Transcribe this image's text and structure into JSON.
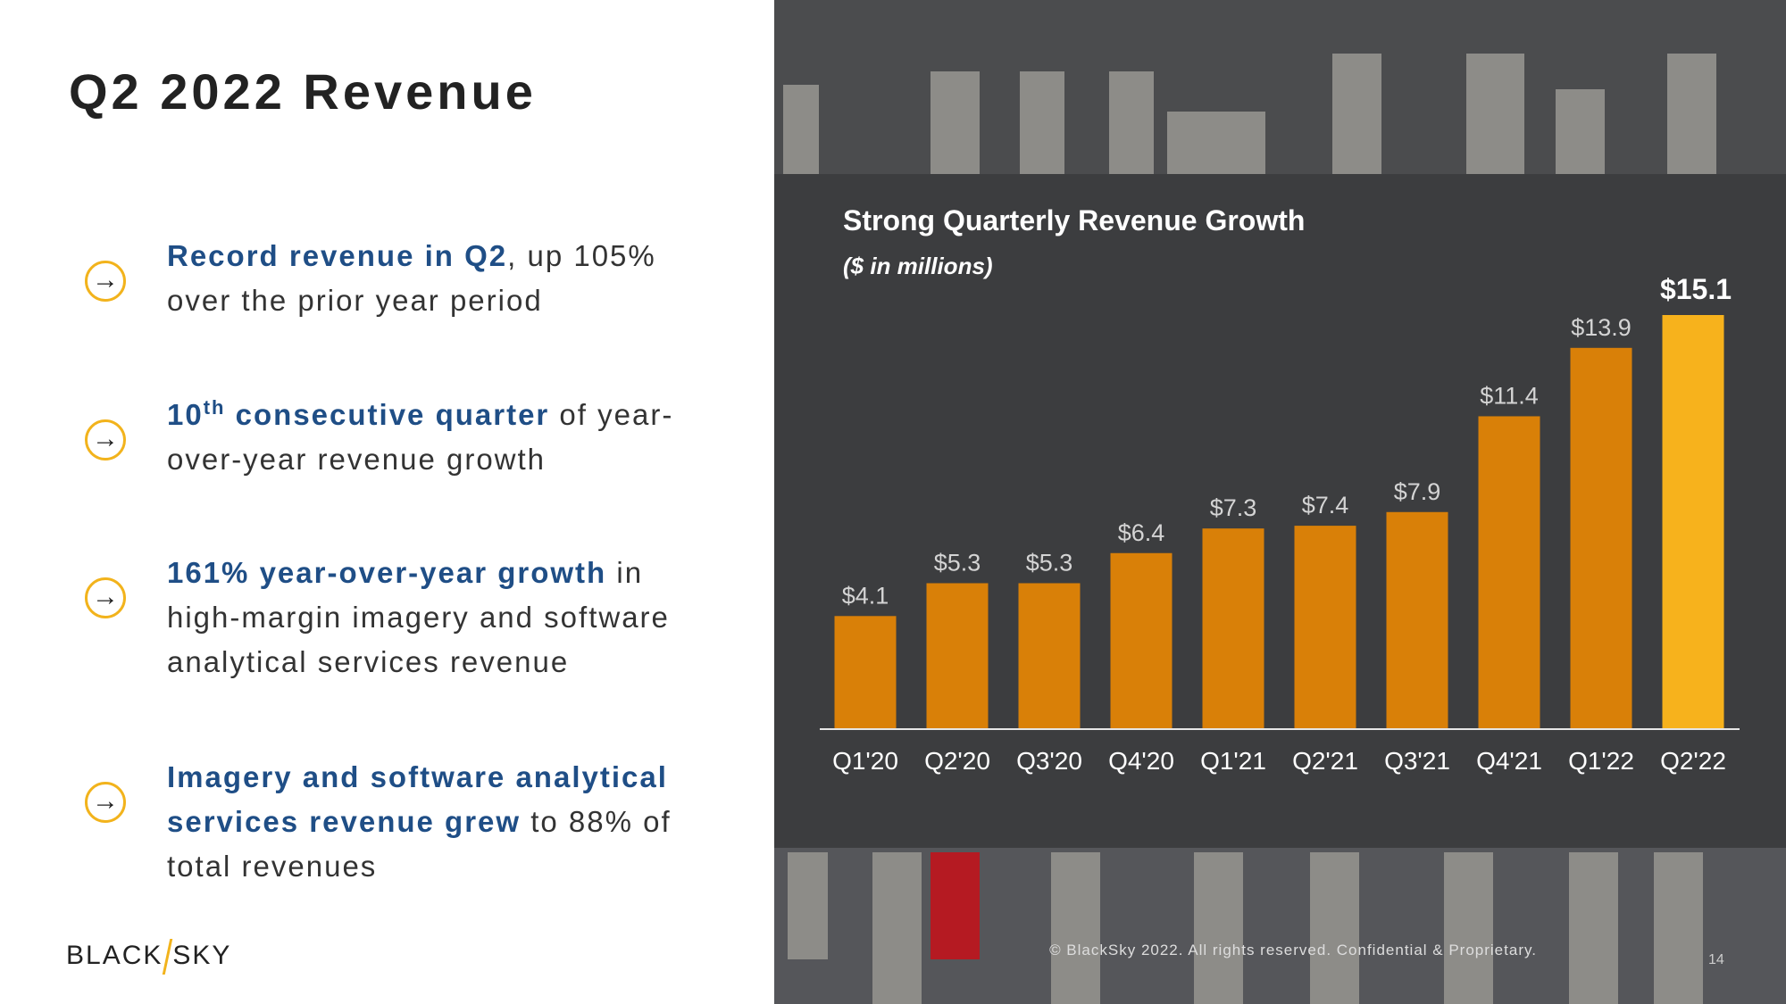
{
  "title": "Q2 2022 Revenue",
  "bullets": [
    {
      "parts": [
        {
          "text": "Record revenue in Q2",
          "bold": true
        },
        {
          "text": ", up 105% over the prior year period"
        }
      ]
    },
    {
      "parts": [
        {
          "text": "10",
          "bold": true
        },
        {
          "text": "th",
          "bold": true,
          "sup": true
        },
        {
          "text": " consecutive quarter",
          "bold": true
        },
        {
          "text": " of year-over-year revenue growth"
        }
      ]
    },
    {
      "parts": [
        {
          "text": "161% year-over-year growth",
          "bold": true
        },
        {
          "text": " in high-margin imagery and software analytical services revenue"
        }
      ]
    },
    {
      "parts": [
        {
          "text": "Imagery and software analytical services revenue grew",
          "bold": true
        },
        {
          "text": " to 88% of total revenues"
        }
      ]
    }
  ],
  "logo": [
    "BLACK",
    "SKY"
  ],
  "footer": "© BlackSky 2022. All rights reserved. Confidential & Proprietary.",
  "page_number": "14",
  "chart_data": {
    "type": "bar",
    "title": "Strong Quarterly Revenue Growth",
    "subtitle": "($ in millions)",
    "categories": [
      "Q1'20",
      "Q2'20",
      "Q3'20",
      "Q4'20",
      "Q1'21",
      "Q2'21",
      "Q3'21",
      "Q4'21",
      "Q1'22",
      "Q2'22"
    ],
    "values": [
      4.1,
      5.3,
      5.3,
      6.4,
      7.3,
      7.4,
      7.9,
      11.4,
      13.9,
      15.1
    ],
    "value_labels": [
      "$4.1",
      "$5.3",
      "$5.3",
      "$6.4",
      "$7.3",
      "$7.4",
      "$7.9",
      "$11.4",
      "$13.9",
      "$15.1"
    ],
    "colors": [
      "#d98008",
      "#d98008",
      "#d98008",
      "#d98008",
      "#d98008",
      "#d98008",
      "#d98008",
      "#d98008",
      "#d98008",
      "#f7b21c"
    ]
  }
}
